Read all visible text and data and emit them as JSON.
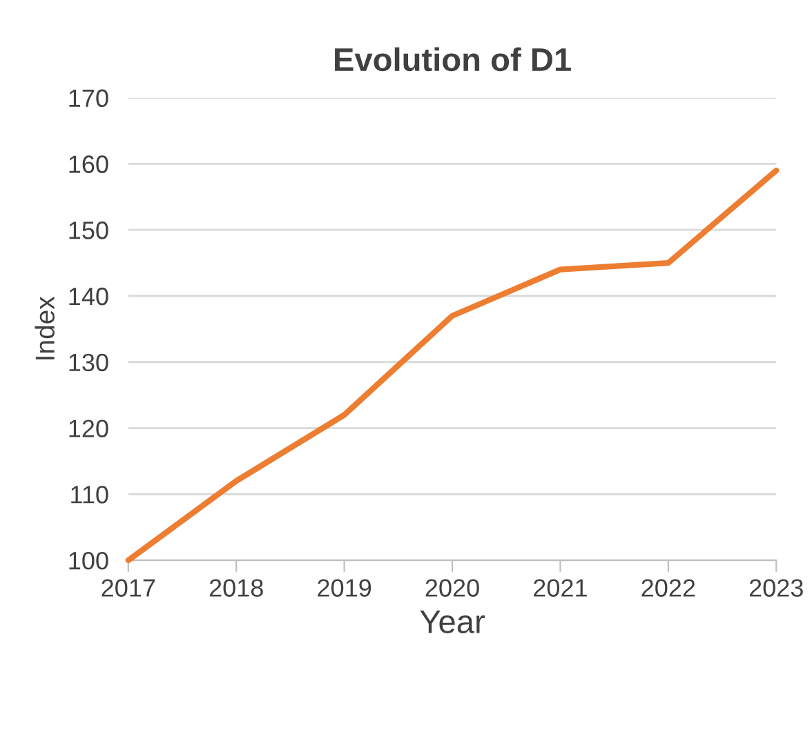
{
  "chart_data": {
    "type": "line",
    "title": "Evolution of D1",
    "xlabel": "Year",
    "ylabel": "Index",
    "x": [
      2017,
      2018,
      2019,
      2020,
      2021,
      2022,
      2023
    ],
    "series": [
      {
        "color": "#ed7d31",
        "values": [
          100,
          112,
          122,
          137,
          144,
          145,
          159
        ]
      }
    ],
    "xlim": [
      2017,
      2023
    ],
    "xticks": [
      2017,
      2018,
      2019,
      2020,
      2021,
      2022,
      2023
    ],
    "ylim": [
      100,
      170
    ],
    "yticks": [
      100,
      110,
      120,
      130,
      140,
      150,
      160,
      170
    ],
    "grid": "y",
    "legend": false,
    "marker": "none",
    "line_style": "solid"
  }
}
